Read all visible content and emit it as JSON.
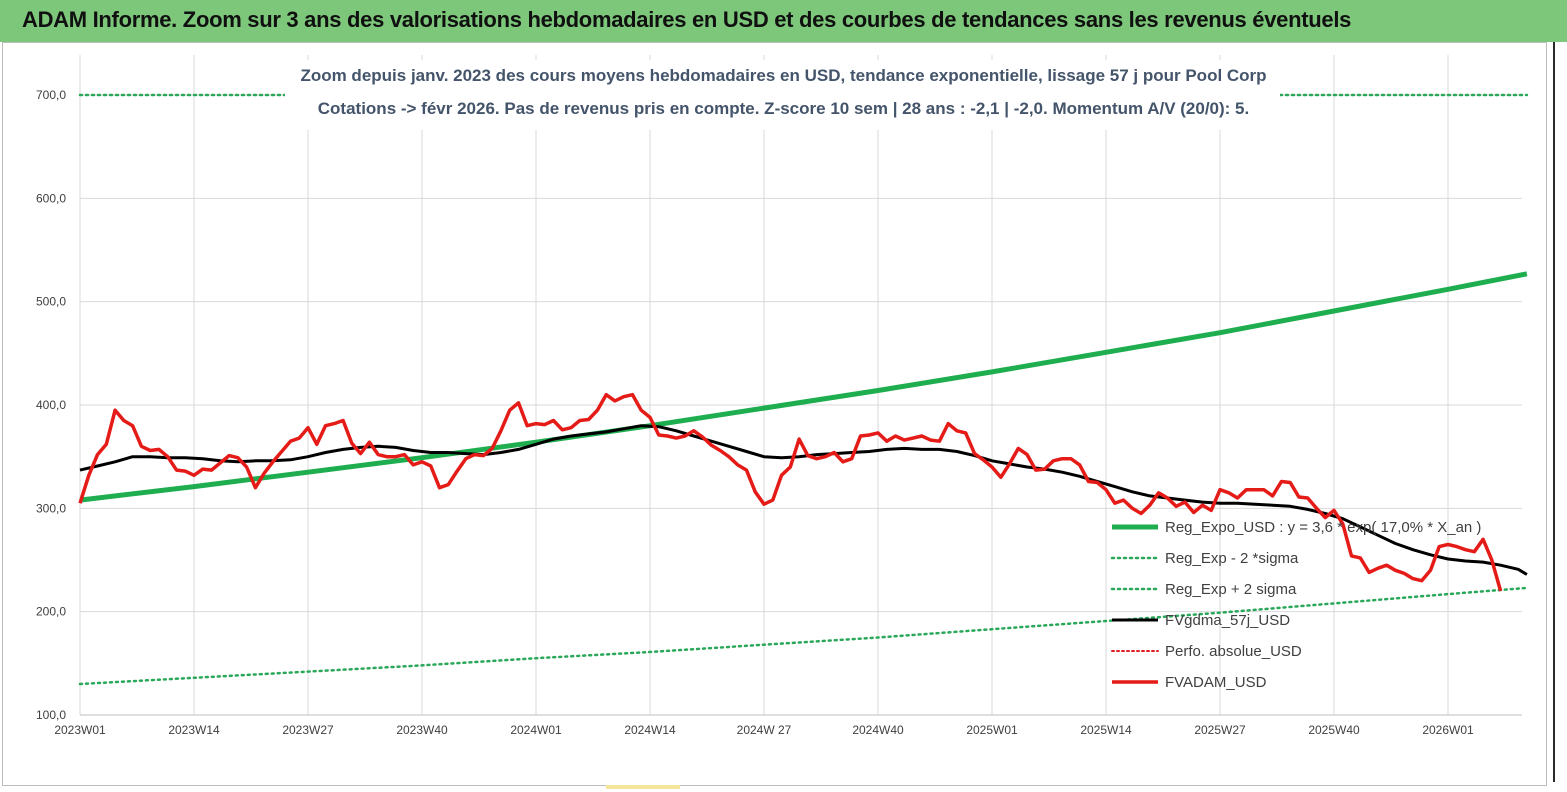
{
  "header": {
    "banner_title": "ADAM Informe. Zoom sur 3 ans des valorisations hebdomadaires en USD et des courbes de tendances sans les revenus éventuels"
  },
  "colors": {
    "banner": "#7dc77a",
    "reg_expo": "#1fae4f",
    "sigma": "#2aa85a",
    "fvgdma": "#000000",
    "perfo": "#e02020",
    "fvadam": "#e41b17"
  },
  "chart_data": {
    "type": "line",
    "title_line1": "Zoom depuis janv. 2023 des cours moyens hebdomadaires en USD, tendance exponentielle, lissage 57 j pour Pool Corp",
    "title_line2": "Cotations -> févr 2026.  Pas de revenus pris en compte. Z-score 10 sem  | 28 ans : -2,1  | -2,0. Momentum A/V (20/0): 5.",
    "x_tick_labels": [
      "2023W01",
      "2023W14",
      "2023W27",
      "2023W40",
      "2024W01",
      "2024W14",
      "2024W 27",
      "2024W40",
      "2025W01",
      "2025W14",
      "2025W27",
      "2025W40",
      "2026W01"
    ],
    "x_tick_weeks": [
      0,
      13,
      26,
      39,
      52,
      65,
      78,
      91,
      104,
      117,
      130,
      143,
      156
    ],
    "x_range_weeks": [
      0,
      165
    ],
    "ylim": [
      100,
      700
    ],
    "y_ticks": [
      "100,0",
      "200,0",
      "300,0",
      "400,0",
      "500,0",
      "600,0",
      "700,0"
    ],
    "grid": "vertical-and-horizontal",
    "legend_position": "bottom-right",
    "series": [
      {
        "name": "Reg_Expo_USD : y = 3,6 * exp( 17,0% *  X_an )",
        "style": "solid-thick",
        "points": [
          [
            0,
            308
          ],
          [
            13,
            321
          ],
          [
            26,
            335
          ],
          [
            39,
            349
          ],
          [
            52,
            364
          ],
          [
            65,
            380
          ],
          [
            78,
            397
          ],
          [
            91,
            414
          ],
          [
            104,
            432
          ],
          [
            117,
            451
          ],
          [
            130,
            470
          ],
          [
            143,
            491
          ],
          [
            156,
            512
          ],
          [
            165,
            527
          ]
        ]
      },
      {
        "name": "Reg_Exp - 2 *sigma",
        "style": "dotted",
        "points": [
          [
            0,
            130
          ],
          [
            13,
            136
          ],
          [
            26,
            142
          ],
          [
            39,
            148
          ],
          [
            52,
            155
          ],
          [
            65,
            161
          ],
          [
            78,
            168
          ],
          [
            91,
            175
          ],
          [
            104,
            183
          ],
          [
            117,
            191
          ],
          [
            130,
            199
          ],
          [
            143,
            208
          ],
          [
            156,
            217
          ],
          [
            165,
            223
          ]
        ]
      },
      {
        "name": "Reg_Exp + 2 sigma",
        "style": "dotted",
        "points": [
          [
            0,
            700
          ],
          [
            165,
            700
          ]
        ]
      },
      {
        "name": "FVgdma_57j_USD",
        "style": "solid",
        "points": [
          [
            0,
            337
          ],
          [
            2,
            341
          ],
          [
            4,
            345
          ],
          [
            6,
            350
          ],
          [
            8,
            350
          ],
          [
            10,
            349
          ],
          [
            12,
            349
          ],
          [
            14,
            348
          ],
          [
            16,
            346
          ],
          [
            18,
            345
          ],
          [
            20,
            346
          ],
          [
            22,
            346
          ],
          [
            24,
            347
          ],
          [
            26,
            350
          ],
          [
            28,
            354
          ],
          [
            30,
            357
          ],
          [
            32,
            359
          ],
          [
            34,
            360
          ],
          [
            36,
            359
          ],
          [
            38,
            356
          ],
          [
            40,
            354
          ],
          [
            42,
            354
          ],
          [
            44,
            353
          ],
          [
            46,
            352
          ],
          [
            48,
            354
          ],
          [
            50,
            357
          ],
          [
            52,
            362
          ],
          [
            54,
            367
          ],
          [
            56,
            370
          ],
          [
            58,
            372
          ],
          [
            60,
            374
          ],
          [
            62,
            377
          ],
          [
            64,
            380
          ],
          [
            66,
            379
          ],
          [
            68,
            375
          ],
          [
            70,
            370
          ],
          [
            72,
            365
          ],
          [
            74,
            360
          ],
          [
            76,
            355
          ],
          [
            78,
            350
          ],
          [
            80,
            349
          ],
          [
            82,
            350
          ],
          [
            84,
            352
          ],
          [
            86,
            353
          ],
          [
            88,
            354
          ],
          [
            90,
            355
          ],
          [
            92,
            357
          ],
          [
            94,
            358
          ],
          [
            96,
            357
          ],
          [
            98,
            357
          ],
          [
            100,
            355
          ],
          [
            102,
            351
          ],
          [
            104,
            346
          ],
          [
            106,
            343
          ],
          [
            108,
            340
          ],
          [
            110,
            338
          ],
          [
            112,
            335
          ],
          [
            114,
            331
          ],
          [
            116,
            326
          ],
          [
            118,
            321
          ],
          [
            120,
            316
          ],
          [
            122,
            312
          ],
          [
            124,
            310
          ],
          [
            126,
            308
          ],
          [
            128,
            306
          ],
          [
            130,
            305
          ],
          [
            132,
            305
          ],
          [
            134,
            304
          ],
          [
            136,
            303
          ],
          [
            138,
            302
          ],
          [
            140,
            299
          ],
          [
            142,
            295
          ],
          [
            144,
            290
          ],
          [
            146,
            282
          ],
          [
            148,
            274
          ],
          [
            150,
            266
          ],
          [
            152,
            260
          ],
          [
            154,
            255
          ],
          [
            156,
            251
          ],
          [
            158,
            249
          ],
          [
            160,
            248
          ],
          [
            162,
            245
          ],
          [
            164,
            241
          ],
          [
            165,
            236
          ]
        ]
      },
      {
        "name": "Perfo. absolue_USD",
        "style": "dotted",
        "points": []
      },
      {
        "name": "FVADAM_USD",
        "style": "solid-thick",
        "points": [
          [
            0,
            305
          ],
          [
            1,
            332
          ],
          [
            2,
            352
          ],
          [
            3,
            362
          ],
          [
            4,
            395
          ],
          [
            5,
            385
          ],
          [
            6,
            380
          ],
          [
            7,
            360
          ],
          [
            8,
            356
          ],
          [
            9,
            357
          ],
          [
            10,
            350
          ],
          [
            11,
            337
          ],
          [
            12,
            336
          ],
          [
            13,
            332
          ],
          [
            14,
            338
          ],
          [
            15,
            337
          ],
          [
            16,
            344
          ],
          [
            17,
            351
          ],
          [
            18,
            349
          ],
          [
            19,
            340
          ],
          [
            20,
            320
          ],
          [
            21,
            334
          ],
          [
            22,
            345
          ],
          [
            23,
            355
          ],
          [
            24,
            365
          ],
          [
            25,
            368
          ],
          [
            26,
            378
          ],
          [
            27,
            362
          ],
          [
            28,
            380
          ],
          [
            29,
            382
          ],
          [
            30,
            385
          ],
          [
            31,
            363
          ],
          [
            32,
            353
          ],
          [
            33,
            364
          ],
          [
            34,
            352
          ],
          [
            35,
            350
          ],
          [
            36,
            350
          ],
          [
            37,
            352
          ],
          [
            38,
            342
          ],
          [
            39,
            345
          ],
          [
            40,
            341
          ],
          [
            41,
            320
          ],
          [
            42,
            323
          ],
          [
            43,
            336
          ],
          [
            44,
            348
          ],
          [
            45,
            352
          ],
          [
            46,
            351
          ],
          [
            47,
            358
          ],
          [
            48,
            375
          ],
          [
            49,
            395
          ],
          [
            50,
            402
          ],
          [
            51,
            380
          ],
          [
            52,
            382
          ],
          [
            53,
            381
          ],
          [
            54,
            385
          ],
          [
            55,
            376
          ],
          [
            56,
            378
          ],
          [
            57,
            385
          ],
          [
            58,
            386
          ],
          [
            59,
            395
          ],
          [
            60,
            410
          ],
          [
            61,
            404
          ],
          [
            62,
            408
          ],
          [
            63,
            410
          ],
          [
            64,
            395
          ],
          [
            65,
            388
          ],
          [
            66,
            371
          ],
          [
            67,
            370
          ],
          [
            68,
            368
          ],
          [
            69,
            370
          ],
          [
            70,
            375
          ],
          [
            71,
            369
          ],
          [
            72,
            361
          ],
          [
            73,
            356
          ],
          [
            74,
            350
          ],
          [
            75,
            342
          ],
          [
            76,
            337
          ],
          [
            77,
            316
          ],
          [
            78,
            304
          ],
          [
            79,
            308
          ],
          [
            80,
            332
          ],
          [
            81,
            340
          ],
          [
            82,
            367
          ],
          [
            83,
            351
          ],
          [
            84,
            348
          ],
          [
            85,
            350
          ],
          [
            86,
            354
          ],
          [
            87,
            345
          ],
          [
            88,
            348
          ],
          [
            89,
            370
          ],
          [
            90,
            371
          ],
          [
            91,
            373
          ],
          [
            92,
            365
          ],
          [
            93,
            370
          ],
          [
            94,
            366
          ],
          [
            95,
            368
          ],
          [
            96,
            370
          ],
          [
            97,
            366
          ],
          [
            98,
            365
          ],
          [
            99,
            382
          ],
          [
            100,
            375
          ],
          [
            101,
            373
          ],
          [
            102,
            353
          ],
          [
            103,
            347
          ],
          [
            104,
            340
          ],
          [
            105,
            330
          ],
          [
            106,
            343
          ],
          [
            107,
            358
          ],
          [
            108,
            352
          ],
          [
            109,
            337
          ],
          [
            110,
            338
          ],
          [
            111,
            346
          ],
          [
            112,
            348
          ],
          [
            113,
            348
          ],
          [
            114,
            342
          ],
          [
            115,
            326
          ],
          [
            116,
            325
          ],
          [
            117,
            318
          ],
          [
            118,
            305
          ],
          [
            119,
            308
          ],
          [
            120,
            300
          ],
          [
            121,
            295
          ],
          [
            122,
            303
          ],
          [
            123,
            315
          ],
          [
            124,
            310
          ],
          [
            125,
            302
          ],
          [
            126,
            306
          ],
          [
            127,
            296
          ],
          [
            128,
            303
          ],
          [
            129,
            298
          ],
          [
            130,
            318
          ],
          [
            131,
            315
          ],
          [
            132,
            310
          ],
          [
            133,
            318
          ],
          [
            134,
            318
          ],
          [
            135,
            318
          ],
          [
            136,
            312
          ],
          [
            137,
            326
          ],
          [
            138,
            325
          ],
          [
            139,
            311
          ],
          [
            140,
            310
          ],
          [
            141,
            300
          ],
          [
            142,
            291
          ],
          [
            143,
            298
          ],
          [
            144,
            285
          ],
          [
            145,
            254
          ],
          [
            146,
            252
          ],
          [
            147,
            238
          ],
          [
            148,
            242
          ],
          [
            149,
            245
          ],
          [
            150,
            240
          ],
          [
            151,
            237
          ],
          [
            152,
            232
          ],
          [
            153,
            230
          ],
          [
            154,
            240
          ],
          [
            155,
            263
          ],
          [
            156,
            265
          ],
          [
            157,
            263
          ],
          [
            158,
            260
          ],
          [
            159,
            258
          ],
          [
            160,
            270
          ],
          [
            161,
            250
          ],
          [
            162,
            220
          ]
        ]
      }
    ]
  }
}
